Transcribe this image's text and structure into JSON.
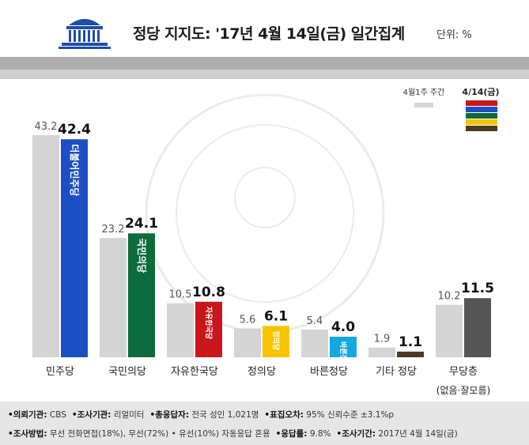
{
  "header": {
    "title": "정당 지지도: '17년 4월 14일(금) 일간집계",
    "unit": "단위: %"
  },
  "chart_data": {
    "type": "bar",
    "categories": [
      "민주당",
      "국민의당",
      "자유한국당",
      "정의당",
      "바른정당",
      "기타 정당",
      "무당층"
    ],
    "category_sublabels": [
      "",
      "",
      "",
      "",
      "",
      "",
      "(없음·잘모름)"
    ],
    "bar_logos": [
      "더불어민주당",
      "국민의당",
      "자유한국당",
      "정의당",
      "바른정당",
      "",
      ""
    ],
    "series": [
      {
        "name": "4월1주 주간",
        "values": [
          43.2,
          23.2,
          10.5,
          5.6,
          5.4,
          1.9,
          10.2
        ],
        "color": "#d4d4d4"
      },
      {
        "name": "4/14(금)",
        "values": [
          42.4,
          24.1,
          10.8,
          6.1,
          4.0,
          1.1,
          11.5
        ],
        "colors": [
          "#1d4fc4",
          "#0c6b3a",
          "#c8161d",
          "#f7c400",
          "#15a8e0",
          "#4a3b22",
          "#555555"
        ]
      }
    ],
    "legend_swatch_colors": [
      "#c8161d",
      "#1d4fc4",
      "#0c6b3a",
      "#f7c400",
      "#4a3b22"
    ],
    "legend_position": "top-right",
    "ylim": [
      0,
      43.2
    ],
    "grid": false
  },
  "footer": {
    "line1": [
      {
        "label": "•의뢰기관:",
        "value": " CBS"
      },
      {
        "label": "•조사기관:",
        "value": " 리얼미터"
      },
      {
        "label": "•총응답자:",
        "value": " 전국 성인 1,021명"
      },
      {
        "label": "•표집오차:",
        "value": " 95% 신뢰수준 ±3.1%p"
      }
    ],
    "line2": [
      {
        "label": "•조사방법:",
        "value": " 무선 전화면접(18%), 무선(72%) • 유선(10%) 자동응답 혼용"
      },
      {
        "label": "•응답률:",
        "value": " 9.8%"
      },
      {
        "label": "•조사기간:",
        "value": " 2017년 4월 14일(금)"
      }
    ]
  }
}
